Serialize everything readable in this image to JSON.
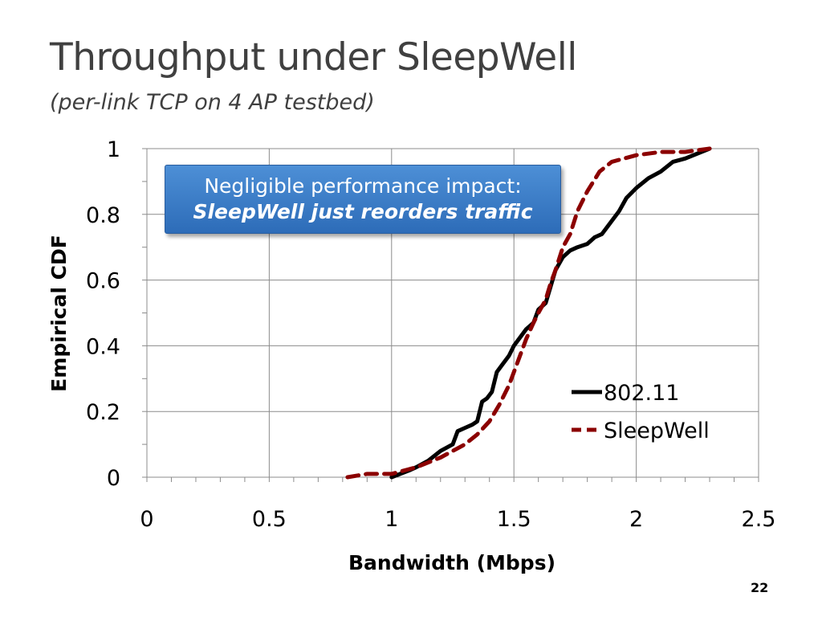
{
  "slide": {
    "title": "Throughput under SleepWell",
    "subtitle": "(per-link TCP on 4 AP testbed)",
    "page_number": "22"
  },
  "callout": {
    "line1": "Negligible performance impact:",
    "line2": "SleepWell just reorders traffic"
  },
  "chart_data": {
    "type": "line",
    "xlabel": "Bandwidth (Mbps)",
    "ylabel": "Empirical CDF",
    "xlim": [
      0,
      2.5
    ],
    "ylim": [
      0,
      1
    ],
    "xticks": [
      0,
      0.5,
      1,
      1.5,
      2,
      2.5
    ],
    "xtick_labels": [
      "0",
      "0.5",
      "1",
      "1.5",
      "2",
      "2.5"
    ],
    "yticks": [
      0,
      0.2,
      0.4,
      0.6,
      0.8,
      1
    ],
    "ytick_labels": [
      "0",
      "0.2",
      "0.4",
      "0.6",
      "0.8",
      "1"
    ],
    "grid": true,
    "legend_position": "bottom-right",
    "series": [
      {
        "name": "802.11",
        "color": "#000000",
        "style": "solid",
        "x": [
          1.0,
          1.07,
          1.1,
          1.15,
          1.2,
          1.25,
          1.27,
          1.3,
          1.33,
          1.35,
          1.37,
          1.39,
          1.41,
          1.43,
          1.45,
          1.48,
          1.5,
          1.53,
          1.55,
          1.58,
          1.6,
          1.63,
          1.65,
          1.67,
          1.7,
          1.73,
          1.76,
          1.8,
          1.83,
          1.86,
          1.9,
          1.93,
          1.96,
          2.0,
          2.05,
          2.1,
          2.15,
          2.2,
          2.3
        ],
        "y": [
          0.0,
          0.02,
          0.03,
          0.05,
          0.08,
          0.1,
          0.14,
          0.15,
          0.16,
          0.17,
          0.23,
          0.24,
          0.26,
          0.32,
          0.34,
          0.37,
          0.4,
          0.43,
          0.45,
          0.47,
          0.51,
          0.53,
          0.58,
          0.63,
          0.67,
          0.69,
          0.7,
          0.71,
          0.73,
          0.74,
          0.78,
          0.81,
          0.85,
          0.88,
          0.91,
          0.93,
          0.96,
          0.97,
          1.0
        ]
      },
      {
        "name": "SleepWell",
        "color": "#8b0000",
        "style": "dashed",
        "x": [
          0.82,
          0.9,
          1.0,
          1.1,
          1.2,
          1.3,
          1.35,
          1.4,
          1.44,
          1.48,
          1.5,
          1.52,
          1.55,
          1.58,
          1.6,
          1.63,
          1.65,
          1.67,
          1.7,
          1.73,
          1.76,
          1.8,
          1.85,
          1.9,
          1.95,
          2.0,
          2.1,
          2.2,
          2.3
        ],
        "y": [
          0.0,
          0.01,
          0.01,
          0.03,
          0.06,
          0.1,
          0.13,
          0.17,
          0.22,
          0.28,
          0.32,
          0.36,
          0.42,
          0.47,
          0.5,
          0.54,
          0.59,
          0.63,
          0.7,
          0.74,
          0.81,
          0.87,
          0.93,
          0.96,
          0.97,
          0.98,
          0.99,
          0.99,
          1.0
        ]
      }
    ]
  }
}
